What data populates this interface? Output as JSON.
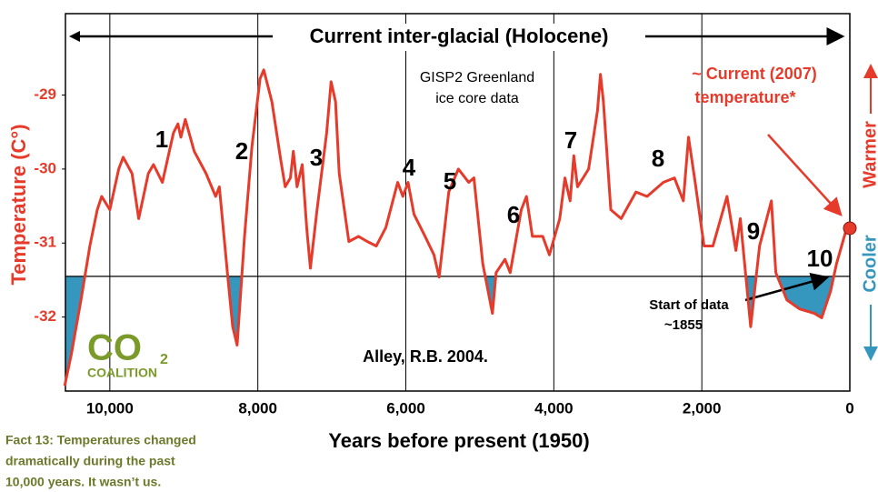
{
  "chart_data": {
    "type": "line",
    "title": "Current inter-glacial (Holocene)",
    "xlabel": "Years before present (1950)",
    "ylabel": "Temperature (C°)",
    "xlim": [
      10600,
      0
    ],
    "ylim": [
      -33,
      -27.9
    ],
    "xticks": [
      {
        "value": 10000,
        "label": "10,000"
      },
      {
        "value": 8000,
        "label": "8,000"
      },
      {
        "value": 6000,
        "label": "6,000"
      },
      {
        "value": 4000,
        "label": "4,000"
      },
      {
        "value": 2000,
        "label": "2,000"
      },
      0
    ],
    "yticks": [
      -29,
      -30,
      -31,
      -32
    ],
    "grid": "x",
    "color": "#e63a2b",
    "fill_color": "#3597bd",
    "reference_line": -31.45,
    "series": [
      {
        "name": "GISP2 Greenland ice core data",
        "color": "#e63a2b",
        "x": [
          10610,
          10520,
          10390,
          10270,
          10170,
          10110,
          10000,
          9880,
          9820,
          9700,
          9610,
          9480,
          9410,
          9290,
          9140,
          9080,
          9040,
          8980,
          8860,
          8700,
          8570,
          8520,
          8400,
          8340,
          8280,
          8180,
          8080,
          7970,
          7920,
          7810,
          7690,
          7630,
          7560,
          7520,
          7470,
          7400,
          7340,
          7290,
          7200,
          7070,
          7010,
          6950,
          6900,
          6770,
          6640,
          6520,
          6400,
          6270,
          6110,
          6040,
          5970,
          5890,
          5740,
          5620,
          5550,
          5420,
          5290,
          5150,
          5080,
          4960,
          4830,
          4780,
          4660,
          4590,
          4440,
          4370,
          4290,
          4150,
          4060,
          3920,
          3850,
          3780,
          3730,
          3680,
          3530,
          3410,
          3370,
          3330,
          3230,
          3090,
          2890,
          2740,
          2520,
          2370,
          2250,
          2180,
          2090,
          1970,
          1850,
          1660,
          1540,
          1480,
          1410,
          1340,
          1220,
          1060,
          1000,
          850,
          680,
          480,
          380,
          260,
          180,
          40
        ],
        "values": [
          -32.93,
          -32.5,
          -31.77,
          -31.04,
          -30.55,
          -30.37,
          -30.55,
          -30.0,
          -29.84,
          -30.06,
          -30.67,
          -30.06,
          -29.94,
          -30.18,
          -29.51,
          -29.39,
          -29.57,
          -29.33,
          -29.76,
          -30.06,
          -30.37,
          -30.24,
          -31.52,
          -32.13,
          -32.38,
          -30.91,
          -29.7,
          -28.78,
          -28.66,
          -29.09,
          -29.88,
          -30.24,
          -30.12,
          -29.76,
          -30.24,
          -29.94,
          -30.79,
          -31.34,
          -30.55,
          -29.51,
          -28.82,
          -29.09,
          -30.06,
          -30.98,
          -30.91,
          -30.98,
          -31.04,
          -30.79,
          -30.18,
          -30.37,
          -30.18,
          -30.61,
          -30.91,
          -31.16,
          -31.46,
          -30.31,
          -30.0,
          -30.18,
          -30.12,
          -31.28,
          -31.95,
          -31.4,
          -31.22,
          -31.4,
          -30.55,
          -30.37,
          -30.91,
          -30.91,
          -31.16,
          -30.67,
          -30.12,
          -30.43,
          -29.82,
          -30.24,
          -30.0,
          -29.21,
          -28.72,
          -29.09,
          -30.55,
          -30.67,
          -30.31,
          -30.37,
          -30.18,
          -30.12,
          -30.43,
          -29.57,
          -30.18,
          -31.04,
          -31.04,
          -30.37,
          -31.1,
          -30.67,
          -31.4,
          -32.13,
          -31.04,
          -30.43,
          -31.4,
          -31.77,
          -31.89,
          -31.95,
          -32.01,
          -31.65,
          -31.28,
          -30.79
        ]
      }
    ],
    "current_marker": {
      "x": 0,
      "value": -30.8
    },
    "annotations": {
      "source": [
        "GISP2 Greenland",
        "ice core data"
      ],
      "current": [
        "~ Current (2007)",
        "temperature*"
      ],
      "citation": "Alley, R.B. 2004.",
      "start": [
        "Start of data",
        "~1855"
      ],
      "numbers": [
        "1",
        "2",
        "3",
        "4",
        "5",
        "6",
        "7",
        "8",
        "9",
        "10"
      ],
      "warmer": "Warmer",
      "cooler": "Cooler"
    },
    "logo": {
      "main": "CO",
      "sub": "2",
      "name": "COALITION"
    },
    "caption": [
      "Fact 13: Temperatures changed",
      "dramatically during the past",
      "10,000 years. It wasn’t us."
    ]
  }
}
